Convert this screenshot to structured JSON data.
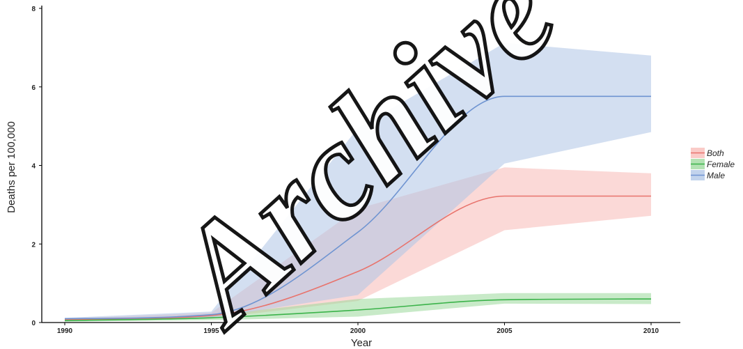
{
  "chart_data": {
    "type": "line",
    "title": "",
    "xlabel": "Year",
    "ylabel": "Deaths per 100,000",
    "xlim": [
      1990,
      2010
    ],
    "ylim": [
      0,
      8
    ],
    "x_ticks": [
      1990,
      1995,
      2000,
      2005,
      2010
    ],
    "y_ticks": [
      0,
      2,
      4,
      6,
      8
    ],
    "grid": false,
    "legend_position": "right",
    "x": [
      1990,
      1995,
      2000,
      2005,
      2010
    ],
    "series": [
      {
        "name": "Both",
        "color": "#e8736c",
        "band_color": "#f8b9b6",
        "values": [
          0.08,
          0.18,
          1.3,
          3.22,
          3.22
        ],
        "lower": [
          0.05,
          0.1,
          0.55,
          2.35,
          2.72
        ],
        "upper": [
          0.1,
          0.25,
          2.9,
          3.95,
          3.8
        ]
      },
      {
        "name": "Female",
        "color": "#3bb34a",
        "band_color": "#9ad89a",
        "values": [
          0.05,
          0.12,
          0.32,
          0.58,
          0.6
        ],
        "lower": [
          0.02,
          0.06,
          0.15,
          0.48,
          0.47
        ],
        "upper": [
          0.08,
          0.18,
          0.6,
          0.75,
          0.75
        ]
      },
      {
        "name": "Male",
        "color": "#6f94d1",
        "band_color": "#aec4e6",
        "values": [
          0.1,
          0.2,
          2.3,
          5.76,
          5.76
        ],
        "lower": [
          0.05,
          0.12,
          0.7,
          4.05,
          4.85
        ],
        "upper": [
          0.12,
          0.28,
          4.95,
          7.12,
          6.8
        ]
      }
    ]
  },
  "watermark": {
    "text": "Archive of SID",
    "color": "#000000"
  }
}
